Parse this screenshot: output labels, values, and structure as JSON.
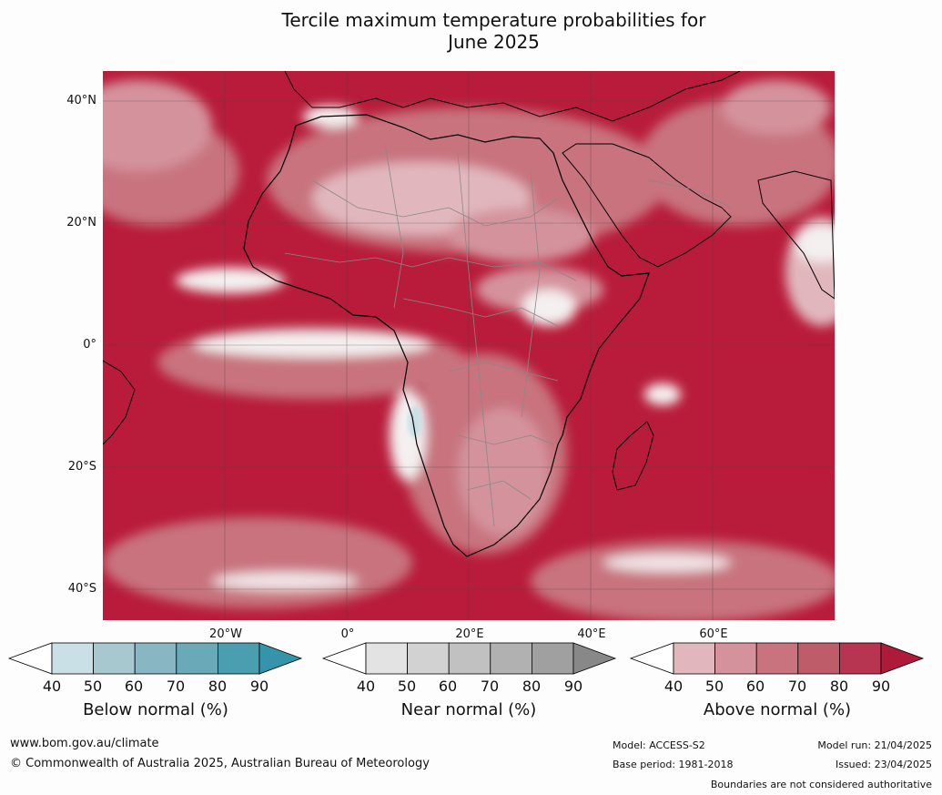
{
  "title": {
    "line1": "Tercile maximum temperature probabilities for",
    "line2": "June 2025"
  },
  "lat_labels": [
    "40°N",
    "20°N",
    "0°",
    "20°S",
    "40°S"
  ],
  "lon_labels": [
    "20°W",
    "0°",
    "20°E",
    "40°E",
    "60°E"
  ],
  "colorbars": [
    {
      "label": "Below normal (%)",
      "ticks": [
        "40",
        "50",
        "60",
        "70",
        "80",
        "90"
      ],
      "colors": [
        "#ffffff",
        "#c9e0e6",
        "#a8c8cf",
        "#88b6c2",
        "#6aa9b7",
        "#4b9db0",
        "#3594aa"
      ]
    },
    {
      "label": "Near normal (%)",
      "ticks": [
        "40",
        "50",
        "60",
        "70",
        "80",
        "90"
      ],
      "colors": [
        "#ffffff",
        "#e3e3e3",
        "#d2d2d2",
        "#c1c1c1",
        "#b1b1b1",
        "#a0a0a0",
        "#888888"
      ]
    },
    {
      "label": "Above normal (%)",
      "ticks": [
        "40",
        "50",
        "60",
        "70",
        "80",
        "90"
      ],
      "colors": [
        "#ffffff",
        "#e1b7bd",
        "#d4939c",
        "#c8737e",
        "#bf5c6a",
        "#b83551",
        "#b01a3a"
      ]
    }
  ],
  "footer": {
    "website": "www.bom.gov.au/climate",
    "copyright": "© Commonwealth of Australia 2025, Australian Bureau of Meteorology",
    "model": "Model: ACCESS-S2",
    "base_period": "Base period: 1981-2018",
    "model_run": "Model run: 21/04/2025",
    "issued": "Issued: 23/04/2025",
    "disclaimer": "Boundaries are not considered authoritative"
  },
  "colors": {
    "dominant": "#b81c3a",
    "pale": "#e1b7bd",
    "near_normal": "#e3e3e3",
    "below_normal": "#c9e0e6"
  }
}
